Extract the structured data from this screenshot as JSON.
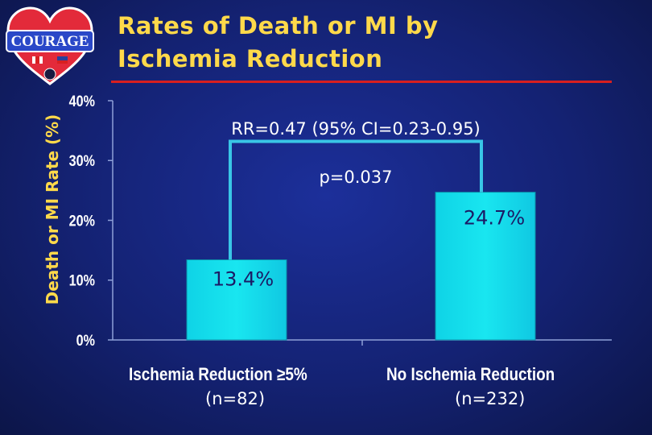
{
  "title_line1": "Rates of Death or MI by",
  "title_line2": "Ischemia Reduction",
  "logo": {
    "text": "COURAGE",
    "icon": "heart-logo-icon"
  },
  "colors": {
    "bar": "#19e6f0",
    "bracket": "#39c6e6",
    "title": "#ffd94a",
    "rule": "#d81f1f"
  },
  "chart_data": {
    "type": "bar",
    "title": "Rates of Death or MI by Ischemia Reduction",
    "ylabel": "Death or MI Rate (%)",
    "xlabel": "",
    "ylim": [
      0,
      40
    ],
    "yticks": [
      "0%",
      "10%",
      "20%",
      "30%",
      "40%"
    ],
    "ytick_values": [
      0,
      10,
      20,
      30,
      40
    ],
    "categories": [
      "Ischemia Reduction ≥5%",
      "No Ischemia Reduction"
    ],
    "values": [
      13.4,
      24.7
    ],
    "data_labels": [
      "13.4%",
      "24.7%"
    ],
    "n_labels": [
      "(n=82)",
      "(n=232)"
    ],
    "annotation": "RR=0.47 (95% CI=0.23-0.95) p=0.037",
    "grid": false,
    "legend": "none"
  }
}
